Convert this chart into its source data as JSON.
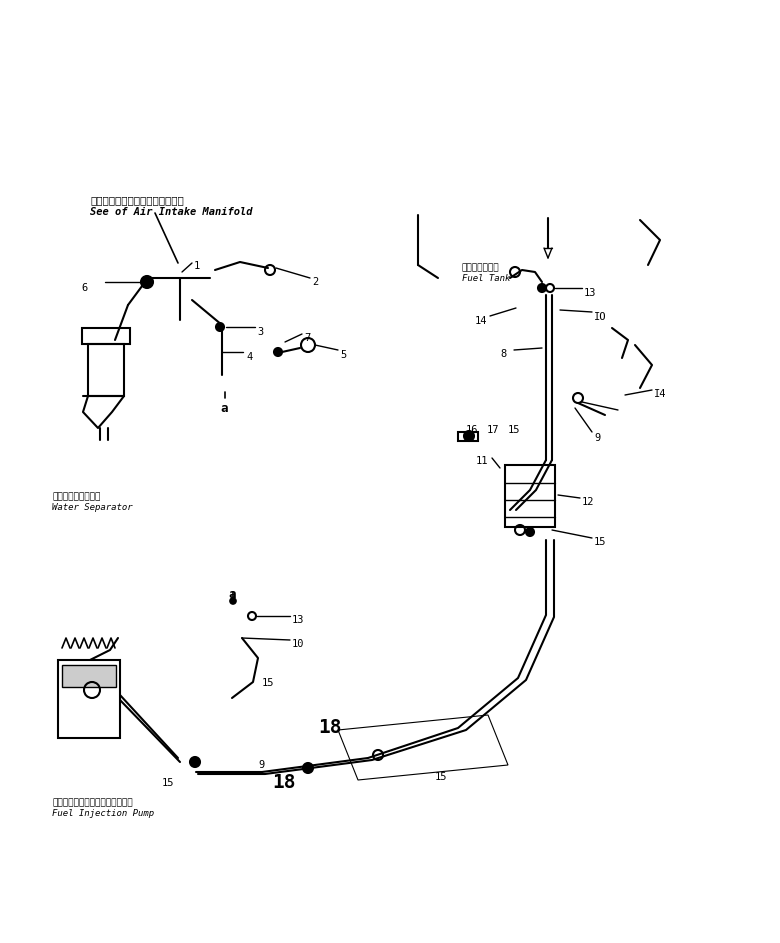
{
  "bg_color": "#ffffff",
  "line_color": "#000000",
  "fig_width": 7.8,
  "fig_height": 9.43,
  "dpi": 100,
  "labels": {
    "air_intake_jp": "エアーインテイクマニホール参照",
    "air_intake_en": "See of Air Intake Manifold",
    "water_sep_jp": "ウォータセパレータ",
    "water_sep_en": "Water Separator",
    "fuel_tank_jp": "フェエルタンク",
    "fuel_tank_en": "Fuel Tank",
    "fuel_pump_jp": "フェエルインジェクションポンプ",
    "fuel_pump_en": "Fuel Injection Pump"
  }
}
